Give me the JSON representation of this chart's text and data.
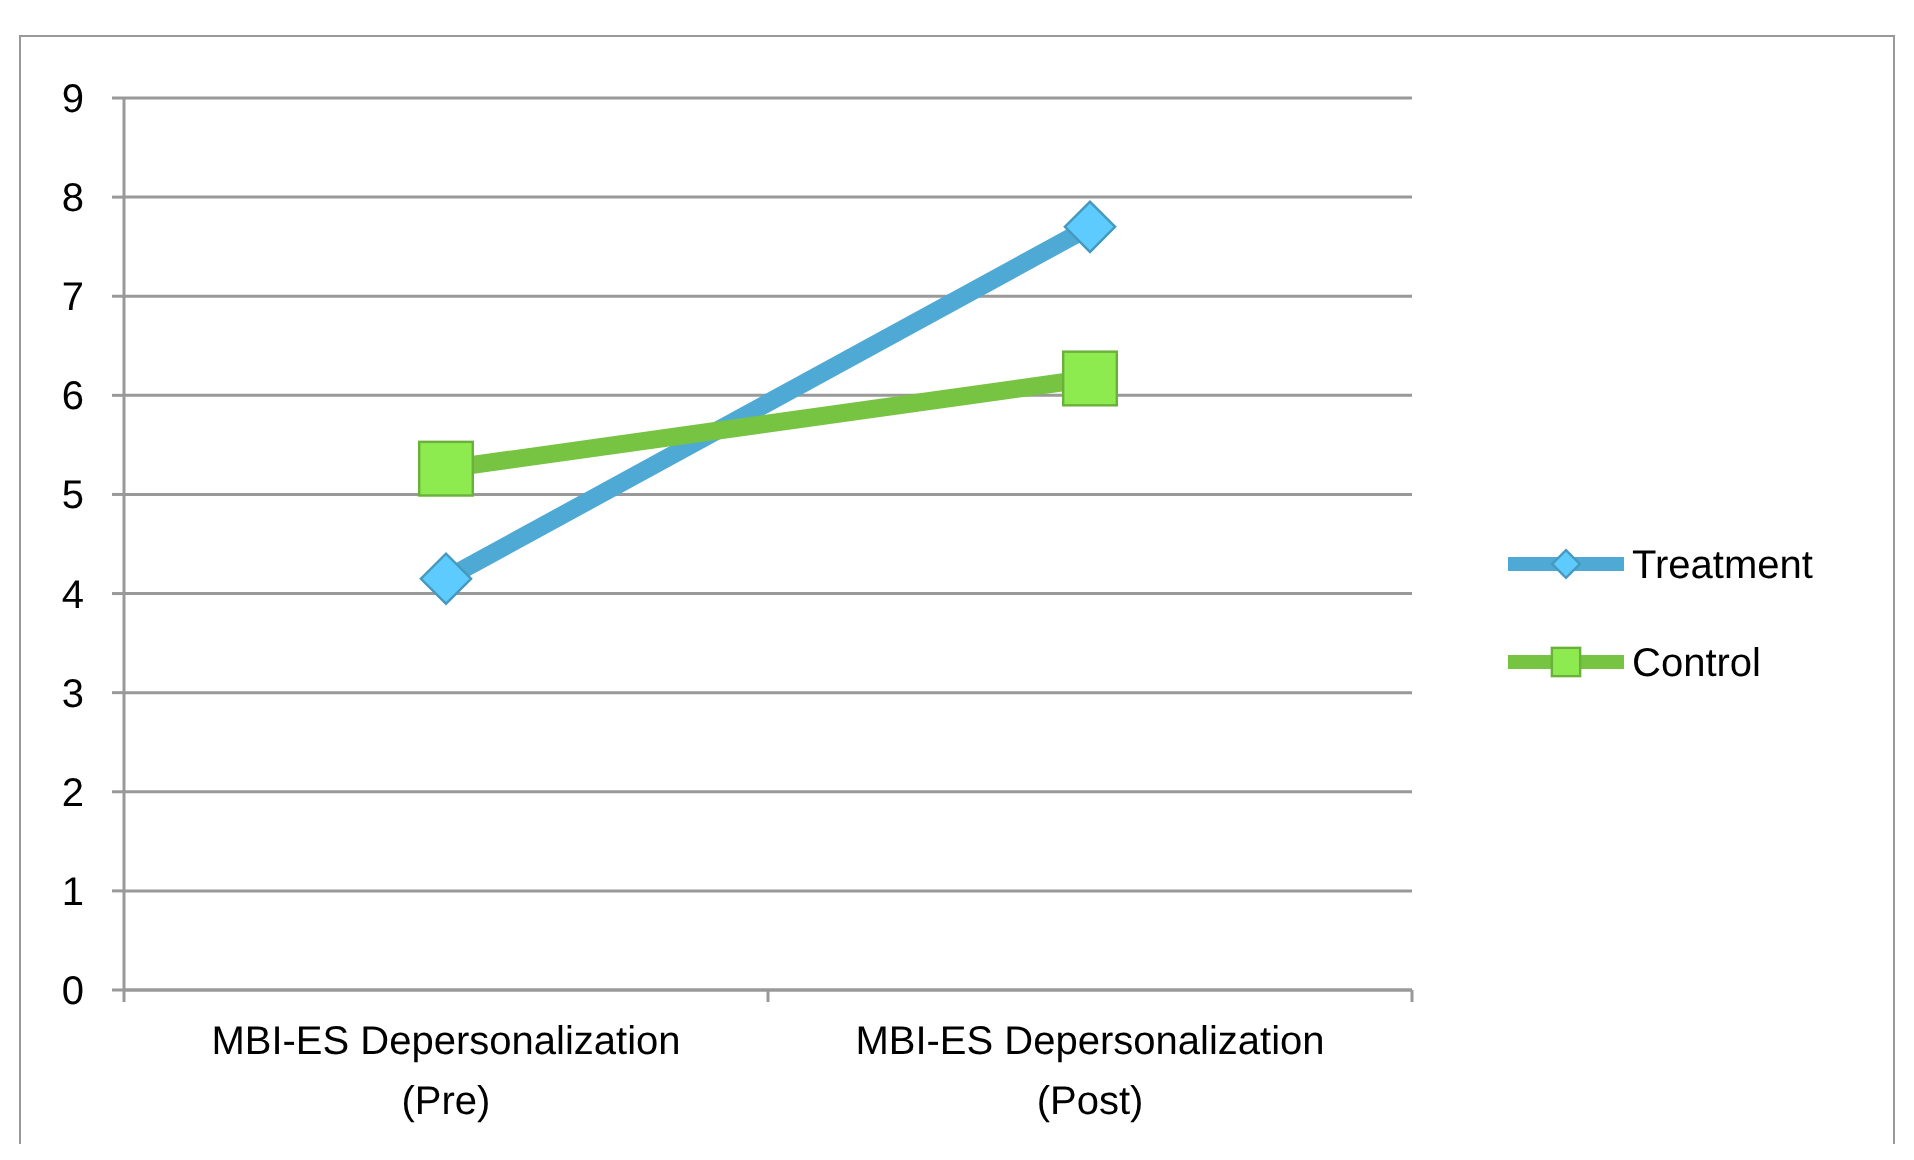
{
  "chart_data": {
    "type": "line",
    "categories": [
      "MBI-ES Depersonalization (Pre)",
      "MBI-ES Depersonalization (Post)"
    ],
    "series": [
      {
        "name": "Treatment",
        "color": "#4eaad4",
        "values": [
          4.15,
          7.7
        ],
        "marker": "diamond"
      },
      {
        "name": "Control",
        "color": "#76c442",
        "values": [
          5.26,
          6.17
        ],
        "marker": "square"
      }
    ],
    "ylim": [
      0,
      9
    ],
    "yticks": [
      0,
      1,
      2,
      3,
      4,
      5,
      6,
      7,
      8,
      9
    ],
    "grid": "y",
    "legend": "right"
  }
}
